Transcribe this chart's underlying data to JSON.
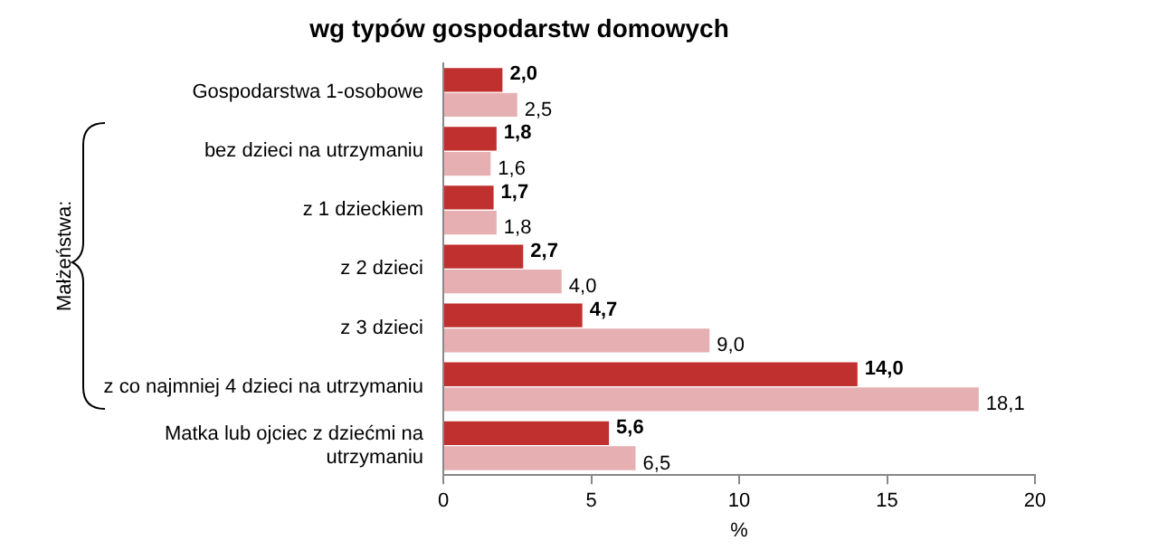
{
  "chart_data": {
    "type": "bar",
    "orientation": "horizontal",
    "title": "wg typów gospodarstw domowych",
    "xlabel": "%",
    "categories": [
      "Gospodarstwa 1-osobowe",
      "bez dzieci na utrzymaniu",
      "z 1 dzieckiem",
      "z 2 dzieci",
      "z 3 dzieci",
      "z co najmniej 4 dzieci na utrzymaniu",
      "Matka lub ojciec z dziećmi na utrzymaniu"
    ],
    "series": [
      {
        "color": "#c0302f",
        "values": [
          2.0,
          1.8,
          1.7,
          2.7,
          4.7,
          14.0,
          5.6
        ],
        "value_labels": [
          "2,0",
          "1,8",
          "1,7",
          "2,7",
          "4,7",
          "14,0",
          "5,6"
        ]
      },
      {
        "color": "#e6b0b2",
        "values": [
          2.5,
          1.6,
          1.8,
          4.0,
          9.0,
          18.1,
          6.5
        ],
        "value_labels": [
          "2,5",
          "1,6",
          "1,8",
          "4,0",
          "9,0",
          "18,1",
          "6,5"
        ]
      }
    ],
    "xlim": [
      0,
      20
    ],
    "xticks": [
      0,
      5,
      10,
      15,
      20
    ],
    "grid": false,
    "legend": false,
    "annotations": [
      "Małżeństwa:"
    ]
  }
}
